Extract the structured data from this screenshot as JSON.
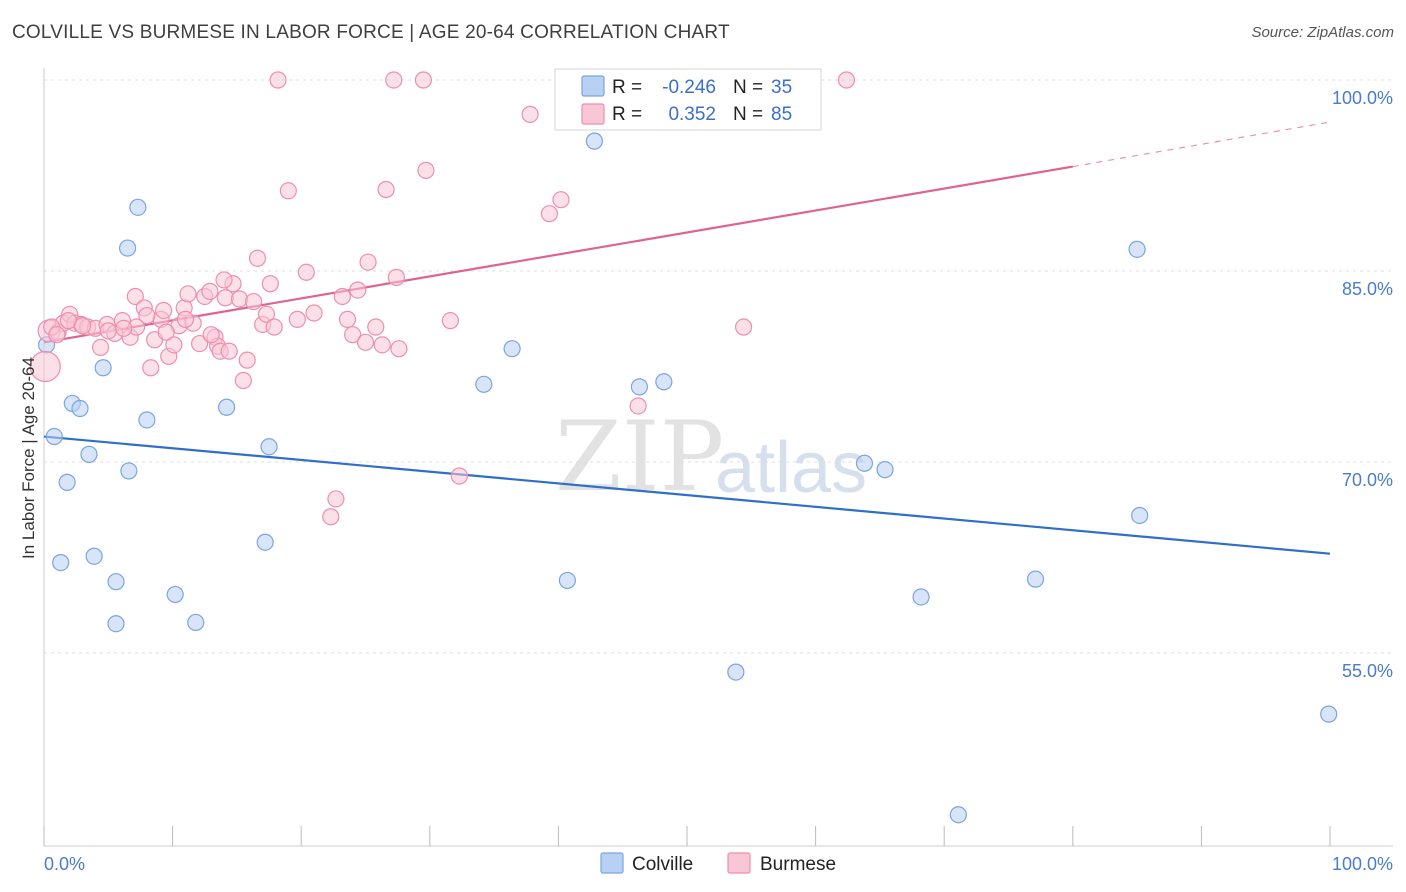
{
  "title": "COLVILLE VS BURMESE IN LABOR FORCE | AGE 20-64 CORRELATION CHART",
  "source": "Source: ZipAtlas.com",
  "watermark": {
    "zip": "ZIP",
    "atlas": "atlas"
  },
  "colors": {
    "colville_fill": "#b8d0f3",
    "colville_stroke": "#7aa5e0",
    "colville_line": "#2f6fcc",
    "burmese_fill": "#f9c6d6",
    "burmese_stroke": "#ee8eaf",
    "burmese_line": "#e0638f",
    "grid": "#dddddd",
    "axis_label": "#4a7cc9"
  },
  "legend": {
    "rows": [
      {
        "r_label": "R =",
        "r_value": "-0.246",
        "n_label": "N =",
        "n_value": "35",
        "series": "colville"
      },
      {
        "r_label": "R =",
        "r_value": "0.352",
        "n_label": "N =",
        "n_value": "85",
        "series": "burmese"
      }
    ]
  },
  "bottom_legend": [
    "Colville",
    "Burmese"
  ],
  "chart_data": {
    "type": "scatter",
    "title": "COLVILLE VS BURMESE IN LABOR FORCE | AGE 20-64 CORRELATION CHART",
    "xlabel": "",
    "ylabel": "In Labor Force | Age 20-64",
    "xlim": [
      0,
      100
    ],
    "ylim": [
      40.5,
      101.5
    ],
    "x_tick_labels": [
      {
        "value": 0,
        "label": "0.0%"
      },
      {
        "value": 100,
        "label": "100.0%"
      }
    ],
    "y_tick_labels": [
      {
        "value": 100,
        "label": "100.0%"
      },
      {
        "value": 85,
        "label": "85.0%"
      },
      {
        "value": 70,
        "label": "70.0%"
      },
      {
        "value": 55,
        "label": "55.0%"
      }
    ],
    "y_gridlines": [
      100,
      85,
      70,
      55
    ],
    "legend_position": "top-center",
    "series": [
      {
        "name": "Colville",
        "R": -0.246,
        "N": 35,
        "points": [
          [
            0.2,
            79.2
          ],
          [
            0.8,
            72.0
          ],
          [
            1.3,
            62.1
          ],
          [
            1.8,
            68.4
          ],
          [
            2.2,
            74.6
          ],
          [
            2.8,
            74.2
          ],
          [
            3.5,
            70.6
          ],
          [
            3.9,
            62.6
          ],
          [
            4.6,
            77.4
          ],
          [
            5.6,
            60.6
          ],
          [
            5.6,
            57.3
          ],
          [
            6.6,
            69.3
          ],
          [
            7.3,
            90.0
          ],
          [
            6.5,
            86.8
          ],
          [
            8.0,
            73.3
          ],
          [
            10.2,
            59.6
          ],
          [
            11.8,
            57.4
          ],
          [
            14.2,
            74.3
          ],
          [
            17.2,
            63.7
          ],
          [
            17.5,
            71.2
          ],
          [
            34.2,
            76.1
          ],
          [
            36.4,
            78.9
          ],
          [
            40.7,
            60.7
          ],
          [
            42.8,
            95.2
          ],
          [
            46.3,
            75.9
          ],
          [
            48.2,
            76.3
          ],
          [
            53.8,
            53.5
          ],
          [
            63.8,
            69.9
          ],
          [
            65.4,
            69.4
          ],
          [
            68.2,
            59.4
          ],
          [
            71.1,
            42.3
          ],
          [
            77.1,
            60.8
          ],
          [
            85.0,
            86.7
          ],
          [
            85.2,
            65.8
          ],
          [
            99.9,
            50.2
          ]
        ],
        "trend": {
          "x": [
            0,
            100
          ],
          "y": [
            72.0,
            62.8
          ]
        }
      },
      {
        "name": "Burmese",
        "R": 0.352,
        "N": 85,
        "points": [
          [
            0.1,
            77.5
          ],
          [
            0.4,
            80.3
          ],
          [
            1.1,
            80.2
          ],
          [
            1.5,
            80.9
          ],
          [
            2.0,
            81.6
          ],
          [
            2.4,
            80.9
          ],
          [
            2.9,
            80.8
          ],
          [
            3.4,
            80.6
          ],
          [
            4.0,
            80.5
          ],
          [
            4.4,
            79.0
          ],
          [
            4.9,
            80.8
          ],
          [
            5.5,
            80.1
          ],
          [
            6.1,
            81.1
          ],
          [
            6.7,
            79.8
          ],
          [
            7.2,
            80.6
          ],
          [
            7.1,
            83.0
          ],
          [
            7.8,
            82.1
          ],
          [
            8.3,
            77.4
          ],
          [
            8.6,
            79.6
          ],
          [
            9.1,
            81.2
          ],
          [
            9.3,
            81.9
          ],
          [
            9.7,
            78.3
          ],
          [
            10.1,
            79.2
          ],
          [
            10.5,
            80.7
          ],
          [
            10.9,
            82.1
          ],
          [
            11.2,
            83.2
          ],
          [
            11.6,
            80.9
          ],
          [
            12.1,
            79.3
          ],
          [
            12.5,
            83.0
          ],
          [
            12.9,
            83.4
          ],
          [
            13.3,
            79.8
          ],
          [
            13.5,
            79.1
          ],
          [
            13.7,
            78.7
          ],
          [
            14.1,
            82.9
          ],
          [
            14.4,
            78.7
          ],
          [
            14.7,
            84.0
          ],
          [
            15.2,
            82.8
          ],
          [
            15.5,
            76.4
          ],
          [
            15.8,
            78.0
          ],
          [
            16.3,
            82.6
          ],
          [
            16.6,
            86.0
          ],
          [
            17.0,
            80.8
          ],
          [
            17.3,
            81.6
          ],
          [
            17.6,
            84.0
          ],
          [
            17.9,
            80.6
          ],
          [
            18.2,
            100.0
          ],
          [
            19.0,
            91.3
          ],
          [
            19.7,
            81.2
          ],
          [
            20.4,
            84.9
          ],
          [
            21.0,
            81.7
          ],
          [
            22.3,
            65.7
          ],
          [
            22.7,
            67.1
          ],
          [
            23.2,
            83.0
          ],
          [
            23.6,
            81.2
          ],
          [
            24.0,
            80.0
          ],
          [
            24.4,
            83.5
          ],
          [
            25.0,
            79.4
          ],
          [
            25.2,
            85.7
          ],
          [
            25.8,
            80.6
          ],
          [
            26.3,
            79.2
          ],
          [
            26.6,
            91.4
          ],
          [
            27.2,
            100.0
          ],
          [
            27.4,
            84.5
          ],
          [
            27.6,
            78.9
          ],
          [
            29.5,
            100.0
          ],
          [
            29.7,
            92.9
          ],
          [
            31.6,
            81.1
          ],
          [
            32.3,
            68.9
          ],
          [
            37.8,
            97.3
          ],
          [
            39.3,
            89.5
          ],
          [
            40.2,
            90.6
          ],
          [
            46.2,
            74.4
          ],
          [
            54.4,
            80.6
          ],
          [
            62.4,
            100.0
          ],
          [
            0.6,
            80.6
          ],
          [
            1.0,
            80.0
          ],
          [
            1.9,
            81.1
          ],
          [
            3.0,
            80.7
          ],
          [
            5.0,
            80.3
          ],
          [
            6.2,
            80.5
          ],
          [
            8.0,
            81.5
          ],
          [
            9.5,
            80.2
          ],
          [
            11.0,
            81.2
          ],
          [
            13.0,
            80.0
          ],
          [
            14.0,
            84.3
          ]
        ],
        "trend": {
          "x": [
            0,
            80
          ],
          "y": [
            79.4,
            93.2
          ]
        },
        "trend_dashed": {
          "x": [
            80,
            100
          ],
          "y": [
            93.2,
            96.7
          ]
        }
      }
    ]
  }
}
